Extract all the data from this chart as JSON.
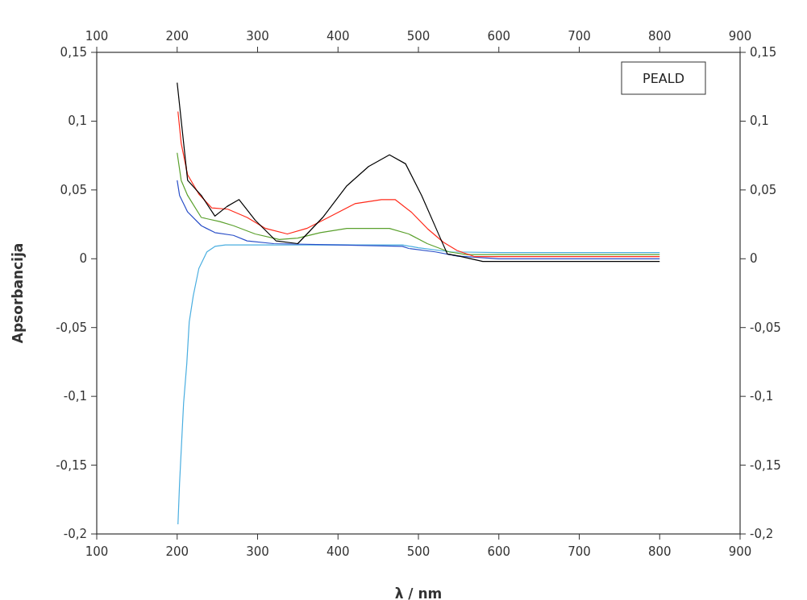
{
  "chart_data": {
    "type": "line",
    "xlabel": "λ / nm",
    "ylabel": "Apsorbancija",
    "annotations": [
      "PEALD"
    ],
    "xlim": [
      100,
      900
    ],
    "xticks": [
      100,
      200,
      300,
      400,
      500,
      600,
      700,
      800,
      900
    ],
    "x2lim": [
      100,
      900
    ],
    "x2ticks": [
      100,
      200,
      300,
      400,
      500,
      600,
      700,
      800,
      900
    ],
    "ylim": [
      -0.2,
      0.15
    ],
    "yticks": [
      {
        "value": -0.2,
        "label": "-0,2"
      },
      {
        "value": -0.15,
        "label": "-0,15"
      },
      {
        "value": -0.1,
        "label": "-0,1"
      },
      {
        "value": -0.05,
        "label": "-0,05"
      },
      0,
      {
        "value": 0.05,
        "label": "0,05"
      },
      {
        "value": 0.1,
        "label": "0,1"
      },
      {
        "value": 0.15,
        "label": "0,15"
      }
    ],
    "y2lim": [
      -0.2,
      0.15
    ],
    "y2ticks": [
      {
        "value": -0.2,
        "label": "-0,2"
      },
      {
        "value": -0.15,
        "label": "-0,15"
      },
      {
        "value": -0.1,
        "label": "-0,1"
      },
      {
        "value": -0.05,
        "label": "-0,05"
      },
      0,
      {
        "value": 0.05,
        "label": "0,05"
      },
      {
        "value": 0.1,
        "label": "0,1"
      },
      {
        "value": 0.15,
        "label": "0,15"
      }
    ],
    "grid": false,
    "series": [
      {
        "color": "#4aaee0",
        "x": [
          201,
          203,
          208,
          212,
          215,
          220,
          227,
          237,
          247,
          260,
          300,
          400,
          480,
          500,
          540,
          600,
          700,
          800
        ],
        "values": [
          -0.193,
          -0.163,
          -0.105,
          -0.076,
          -0.046,
          -0.027,
          -0.007,
          0.005,
          0.009,
          0.01,
          0.01,
          0.01,
          0.01,
          0.008,
          0.005,
          0.0045,
          0.0045,
          0.0045
        ]
      },
      {
        "color": "#2a4fc8",
        "x": [
          200,
          203,
          213,
          230,
          247,
          270,
          287,
          320,
          400,
          480,
          488,
          521,
          548,
          600,
          700,
          800
        ],
        "values": [
          0.057,
          0.046,
          0.034,
          0.024,
          0.019,
          0.017,
          0.013,
          0.011,
          0.01,
          0.009,
          0.0075,
          0.005,
          0.002,
          0,
          0,
          0
        ]
      },
      {
        "color": "#5aa02c",
        "x": [
          200,
          205,
          213,
          230,
          253,
          270,
          297,
          327,
          350,
          378,
          411,
          464,
          488,
          511,
          538,
          560,
          650,
          800
        ],
        "values": [
          0.077,
          0.057,
          0.046,
          0.03,
          0.027,
          0.024,
          0.018,
          0.014,
          0.015,
          0.019,
          0.022,
          0.022,
          0.018,
          0.011,
          0.005,
          0.003,
          0.003,
          0.003
        ]
      },
      {
        "color": "#ff2a1a",
        "x": [
          201,
          205,
          213,
          227,
          243,
          263,
          287,
          310,
          337,
          361,
          388,
          421,
          454,
          471,
          491,
          511,
          531,
          548,
          570,
          650,
          800
        ],
        "values": [
          0.107,
          0.084,
          0.061,
          0.047,
          0.037,
          0.036,
          0.03,
          0.022,
          0.018,
          0.022,
          0.03,
          0.04,
          0.043,
          0.043,
          0.034,
          0.022,
          0.012,
          0.006,
          0.0015,
          0.0015,
          0.0015
        ]
      },
      {
        "color": "#000000",
        "x": [
          200,
          213,
          230,
          247,
          262,
          277,
          297,
          323,
          350,
          381,
          411,
          438,
          464,
          484,
          504,
          528,
          536,
          550,
          580,
          650,
          720,
          800
        ],
        "values": [
          0.128,
          0.057,
          0.046,
          0.031,
          0.038,
          0.043,
          0.028,
          0.013,
          0.011,
          0.03,
          0.053,
          0.067,
          0.0755,
          0.069,
          0.046,
          0.014,
          0.0035,
          0.002,
          -0.002,
          -0.002,
          -0.002,
          -0.002
        ]
      }
    ]
  }
}
